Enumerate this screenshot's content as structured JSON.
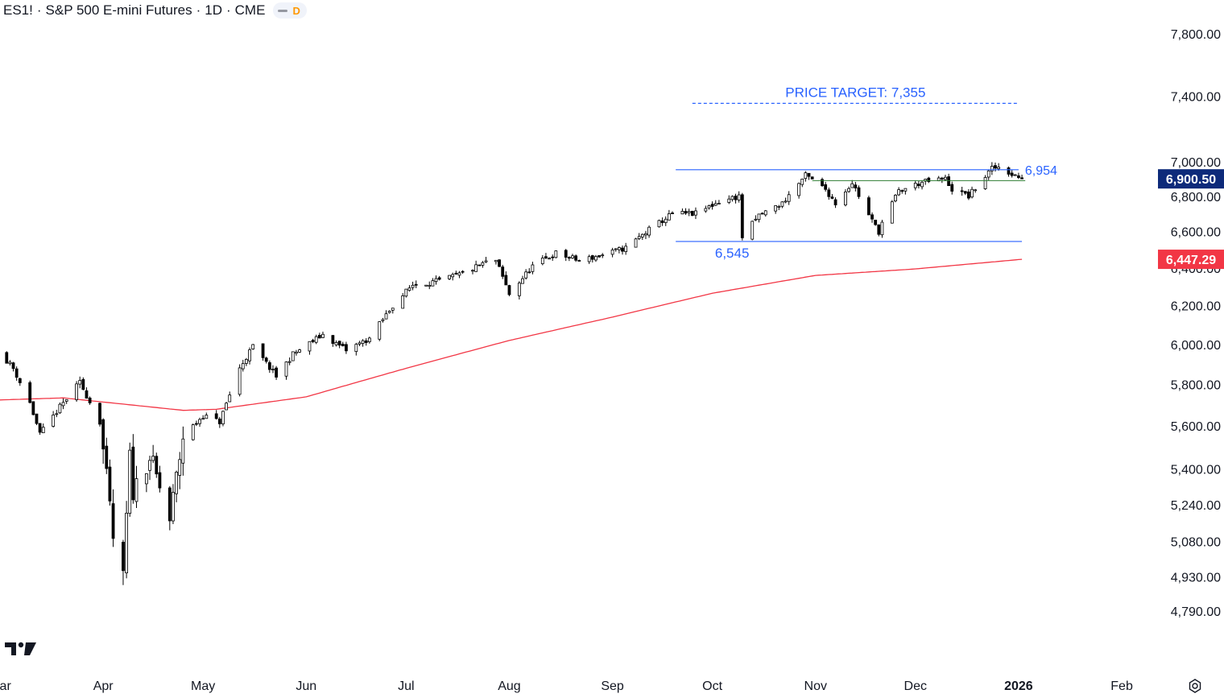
{
  "header": {
    "symbol": "ES1!",
    "name": "S&P 500 E-mini Futures",
    "interval": "1D",
    "exchange": "CME",
    "separator": "·",
    "badge": "D"
  },
  "icons": {
    "logo": "tradingview-logo-icon",
    "settings": "settings-gear-icon",
    "indicator": "minus-pill-icon"
  },
  "colors": {
    "up": "#ffffff",
    "down": "#000000",
    "wick": "#000000",
    "ma": "#f23645",
    "annotation": "#2962ff",
    "support": "#2e7d32",
    "last_price_bg": "#0d2a7a"
  },
  "chart_data": {
    "type": "candlestick",
    "title": "ES1! · S&P 500 E-mini Futures · 1D · CME",
    "x_start": "2025-03-01",
    "x_end": "2026-02-08",
    "x_ticks": [
      {
        "label": "Mar",
        "date": "2025-03-01"
      },
      {
        "label": "Apr",
        "date": "2025-04-01"
      },
      {
        "label": "May",
        "date": "2025-05-01"
      },
      {
        "label": "Jun",
        "date": "2025-06-01"
      },
      {
        "label": "Jul",
        "date": "2025-07-01"
      },
      {
        "label": "Aug",
        "date": "2025-08-01"
      },
      {
        "label": "Sep",
        "date": "2025-09-01"
      },
      {
        "label": "Oct",
        "date": "2025-10-01"
      },
      {
        "label": "Nov",
        "date": "2025-11-01"
      },
      {
        "label": "Dec",
        "date": "2025-12-01"
      },
      {
        "label": "2026",
        "date": "2026-01-01"
      },
      {
        "label": "Feb",
        "date": "2026-02-01"
      }
    ],
    "y_scale": "log",
    "y_range": [
      4690,
      7950
    ],
    "y_ticks": [
      {
        "label": "7,800.00",
        "value": 7800
      },
      {
        "label": "7,400.00",
        "value": 7400
      },
      {
        "label": "7,000.00",
        "value": 7000
      },
      {
        "label": "6,800.00",
        "value": 6800
      },
      {
        "label": "6,600.00",
        "value": 6600
      },
      {
        "label": "6,400.00",
        "value": 6400
      },
      {
        "label": "6,200.00",
        "value": 6200
      },
      {
        "label": "6,000.00",
        "value": 6000
      },
      {
        "label": "5,800.00",
        "value": 5800
      },
      {
        "label": "5,600.00",
        "value": 5600
      },
      {
        "label": "5,400.00",
        "value": 5400
      },
      {
        "label": "5,240.00",
        "value": 5240
      },
      {
        "label": "5,080.00",
        "value": 5080
      },
      {
        "label": "4,930.00",
        "value": 4930
      },
      {
        "label": "4,790.00",
        "value": 4790
      }
    ],
    "price_path": [
      [
        "2025-03-01",
        5960
      ],
      [
        "2025-03-05",
        5880
      ],
      [
        "2025-03-10",
        5710
      ],
      [
        "2025-03-13",
        5560
      ],
      [
        "2025-03-19",
        5690
      ],
      [
        "2025-03-25",
        5810
      ],
      [
        "2025-03-31",
        5620
      ],
      [
        "2025-04-04",
        5090
      ],
      [
        "2025-04-07",
        4920
      ],
      [
        "2025-04-09",
        5450
      ],
      [
        "2025-04-10",
        5300
      ],
      [
        "2025-04-15",
        5460
      ],
      [
        "2025-04-21",
        5170
      ],
      [
        "2025-04-25",
        5550
      ],
      [
        "2025-05-01",
        5650
      ],
      [
        "2025-05-06",
        5620
      ],
      [
        "2025-05-12",
        5880
      ],
      [
        "2025-05-16",
        5990
      ],
      [
        "2025-05-23",
        5840
      ],
      [
        "2025-05-28",
        5950
      ],
      [
        "2025-06-06",
        6050
      ],
      [
        "2025-06-13",
        5970
      ],
      [
        "2025-06-20",
        6030
      ],
      [
        "2025-06-27",
        6200
      ],
      [
        "2025-07-03",
        6310
      ],
      [
        "2025-07-11",
        6330
      ],
      [
        "2025-07-18",
        6370
      ],
      [
        "2025-07-25",
        6430
      ],
      [
        "2025-07-28",
        6440
      ],
      [
        "2025-08-01",
        6260
      ],
      [
        "2025-08-08",
        6410
      ],
      [
        "2025-08-15",
        6480
      ],
      [
        "2025-08-22",
        6440
      ],
      [
        "2025-08-29",
        6470
      ],
      [
        "2025-09-05",
        6510
      ],
      [
        "2025-09-12",
        6610
      ],
      [
        "2025-09-19",
        6700
      ],
      [
        "2025-09-26",
        6700
      ],
      [
        "2025-10-03",
        6770
      ],
      [
        "2025-10-09",
        6800
      ],
      [
        "2025-10-10",
        6570
      ],
      [
        "2025-10-15",
        6690
      ],
      [
        "2025-10-22",
        6760
      ],
      [
        "2025-10-29",
        6920
      ],
      [
        "2025-11-04",
        6840
      ],
      [
        "2025-11-07",
        6760
      ],
      [
        "2025-11-12",
        6880
      ],
      [
        "2025-11-17",
        6690
      ],
      [
        "2025-11-20",
        6600
      ],
      [
        "2025-11-21",
        6650
      ],
      [
        "2025-11-26",
        6830
      ],
      [
        "2025-12-03",
        6880
      ],
      [
        "2025-12-10",
        6900
      ],
      [
        "2025-12-12",
        6840
      ],
      [
        "2025-12-17",
        6800
      ],
      [
        "2025-12-24",
        6960
      ],
      [
        "2025-12-26",
        6970
      ],
      [
        "2025-12-29",
        6940
      ],
      [
        "2026-01-02",
        6900.5
      ]
    ],
    "moving_average": {
      "name": "",
      "color": "#f23645",
      "value_label": "6,447.29",
      "value": 6447.29,
      "points": [
        [
          "2025-03-01",
          5725
        ],
        [
          "2025-03-20",
          5735
        ],
        [
          "2025-04-10",
          5700
        ],
        [
          "2025-04-25",
          5675
        ],
        [
          "2025-05-05",
          5680
        ],
        [
          "2025-06-01",
          5740
        ],
        [
          "2025-07-01",
          5880
        ],
        [
          "2025-08-01",
          6020
        ],
        [
          "2025-09-01",
          6140
        ],
        [
          "2025-10-01",
          6265
        ],
        [
          "2025-11-01",
          6360
        ],
        [
          "2025-12-01",
          6395
        ],
        [
          "2026-01-02",
          6447.29
        ]
      ]
    },
    "last_price": {
      "value": 6900.5,
      "label": "6,900.50"
    },
    "annotations": {
      "price_target": {
        "label": "PRICE TARGET: 7,355",
        "value": 7355,
        "from": "2025-09-25",
        "to": "2026-01-01"
      },
      "resistance": {
        "label": "6,954",
        "value": 6954,
        "from": "2025-09-20",
        "to": "2026-01-01"
      },
      "support": {
        "label": "6,545",
        "value": 6545,
        "from": "2025-09-20",
        "to": "2026-01-02"
      },
      "neckline": {
        "value": 6890,
        "from": "2025-10-31",
        "to": "2026-01-03"
      }
    }
  }
}
